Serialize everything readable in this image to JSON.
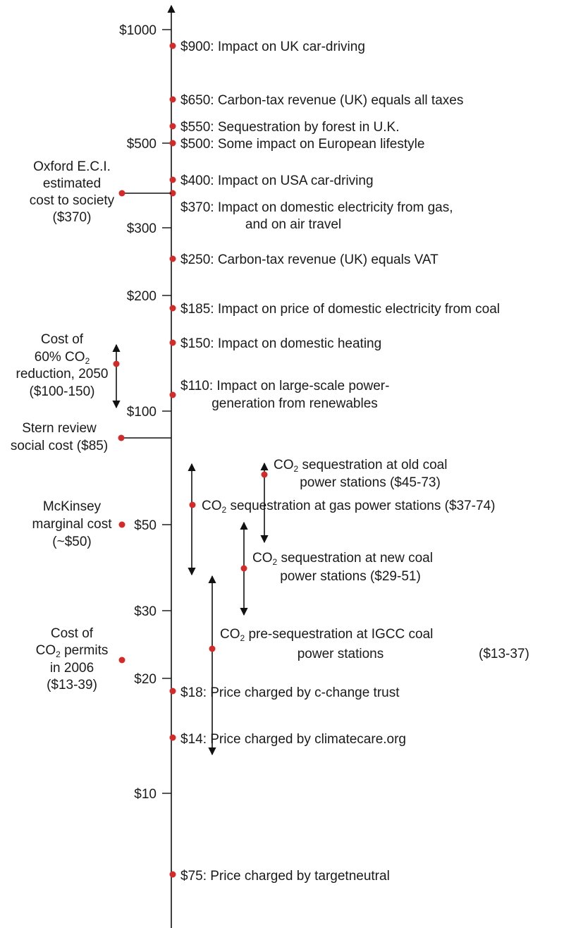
{
  "chart_data": {
    "type": "scatter",
    "scale": "log",
    "currency_unit": "$",
    "ticks": [
      {
        "value": 1000,
        "label": "$1000"
      },
      {
        "value": 500,
        "label": "$500"
      },
      {
        "value": 300,
        "label": "$300"
      },
      {
        "value": 200,
        "label": "$200"
      },
      {
        "value": 100,
        "label": "$100"
      },
      {
        "value": 50,
        "label": "$50"
      },
      {
        "value": 30,
        "label": "$30"
      },
      {
        "value": 20,
        "label": "$20"
      },
      {
        "value": 10,
        "label": "$10"
      }
    ],
    "right_points": [
      {
        "value": 900,
        "lines": [
          "$900: Impact on UK car-driving"
        ]
      },
      {
        "value": 650,
        "lines": [
          "$650: Carbon-tax revenue (UK) equals all taxes"
        ]
      },
      {
        "value": 550,
        "lines": [
          "$550: Sequestration by forest in U.K."
        ]
      },
      {
        "value": 500,
        "lines": [
          "$500: Some impact on European lifestyle"
        ]
      },
      {
        "value": 400,
        "lines": [
          "$400: Impact on USA car-driving"
        ]
      },
      {
        "value": 370,
        "lines": [
          "$370: Impact on domestic electricity from gas,",
          "and on air travel"
        ]
      },
      {
        "value": 250,
        "lines": [
          "$250: Carbon-tax revenue (UK) equals VAT"
        ]
      },
      {
        "value": 185,
        "lines": [
          "$185: Impact on price of domestic electricity from coal"
        ]
      },
      {
        "value": 150,
        "lines": [
          "$150: Impact on domestic heating"
        ]
      },
      {
        "value": 110,
        "lines": [
          "$110: Impact on large-scale power-",
          "generation from renewables"
        ]
      },
      {
        "value": 18,
        "lines": [
          "$18: Price charged by c-change trust"
        ]
      },
      {
        "value": 14,
        "lines": [
          "$14: Price charged by climatecare.org"
        ]
      },
      {
        "value": 75,
        "lines": [
          "$75: Price charged by targetneutral"
        ]
      }
    ],
    "left_items": [
      {
        "value": 370,
        "lines": [
          "Oxford E.C.I.",
          "estimated",
          "cost to society",
          "($370)"
        ]
      },
      {
        "value_low": 100,
        "value_high": 150,
        "lines": [
          "Cost of",
          "60% CO2",
          "reduction, 2050",
          "($100-150)"
        ]
      },
      {
        "value": 85,
        "lines": [
          "Stern review",
          "social cost ($85)"
        ]
      },
      {
        "value": 50,
        "lines": [
          "McKinsey",
          "marginal cost",
          "(~$50)"
        ]
      },
      {
        "value_low": 13,
        "value_high": 39,
        "lines": [
          "Cost of",
          "CO2 permits",
          "in 2006",
          "($13-39)"
        ]
      }
    ],
    "ranges": [
      {
        "value_low": 37,
        "value_high": 74,
        "lines": [
          "CO2 sequestration at gas power stations ($37-74)"
        ]
      },
      {
        "value_low": 45,
        "value_high": 73,
        "lines": [
          "CO2 sequestration at old coal",
          "power stations ($45-73)"
        ]
      },
      {
        "value_low": 29,
        "value_high": 51,
        "lines": [
          "CO2 sequestration at new coal",
          "power stations ($29-51)"
        ]
      },
      {
        "value_low": 13,
        "value_high": 37,
        "lines": [
          "CO2 pre-sequestration at IGCC coal",
          "power stations"
        ],
        "range_label": "($13-37)"
      }
    ],
    "colors": {
      "marker": "#d42a2a",
      "line": "#111111",
      "text": "#1a1a1a"
    }
  }
}
